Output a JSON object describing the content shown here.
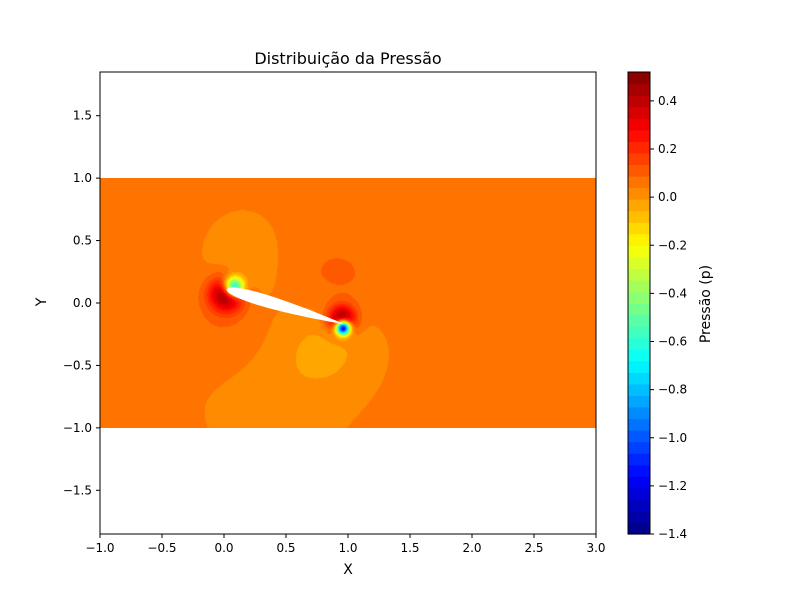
{
  "chart_data": {
    "type": "heatmap",
    "title": "Distribuição da Pressão",
    "xlabel": "X",
    "ylabel": "Y",
    "xlim": [
      -1.0,
      3.0
    ],
    "ylim": [
      -1.85,
      1.85
    ],
    "domain": {
      "x": [
        -1.0,
        3.0
      ],
      "y": [
        -1.0,
        1.0
      ]
    },
    "x_ticks": [
      -1.0,
      -0.5,
      0.0,
      0.5,
      1.0,
      1.5,
      2.0,
      2.5,
      3.0
    ],
    "x_tick_labels": [
      "−1.0",
      "−0.5",
      "0.0",
      "0.5",
      "1.0",
      "1.5",
      "2.0",
      "2.5",
      "3.0"
    ],
    "y_ticks": [
      -1.5,
      -1.0,
      -0.5,
      0.0,
      0.5,
      1.0,
      1.5
    ],
    "y_tick_labels": [
      "−1.5",
      "−1.0",
      "−0.5",
      "0.0",
      "0.5",
      "1.0",
      "1.5"
    ],
    "colormap": "jet",
    "colorbar": {
      "label": "Pressão (p)",
      "range": [
        -1.4,
        0.52
      ],
      "ticks": [
        -1.4,
        -1.2,
        -1.0,
        -0.8,
        -0.6,
        -0.4,
        -0.2,
        0.0,
        0.2,
        0.4
      ],
      "tick_labels": [
        "−1.4",
        "−1.2",
        "−1.0",
        "−0.8",
        "−0.6",
        "−0.4",
        "−0.2",
        "0.0",
        "0.2",
        "0.4"
      ],
      "levels": 40
    },
    "airfoil": {
      "leading_edge": [
        0.02,
        0.11
      ],
      "trailing_edge": [
        0.97,
        -0.17
      ],
      "max_thickness": 0.1,
      "color": "#ffffff"
    },
    "pressure_features": [
      {
        "name": "leading-edge stagnation",
        "x": 0.02,
        "y": 0.07,
        "p": 0.52
      },
      {
        "name": "leading-edge suction",
        "x": 0.08,
        "y": 0.13,
        "p": -0.85
      },
      {
        "name": "trailing-edge stagnation",
        "x": 0.95,
        "y": -0.13,
        "p": 0.5
      },
      {
        "name": "trailing-edge suction",
        "x": 0.96,
        "y": -0.2,
        "p": -1.4
      }
    ],
    "freestream_p": 0.0,
    "grid": false
  }
}
